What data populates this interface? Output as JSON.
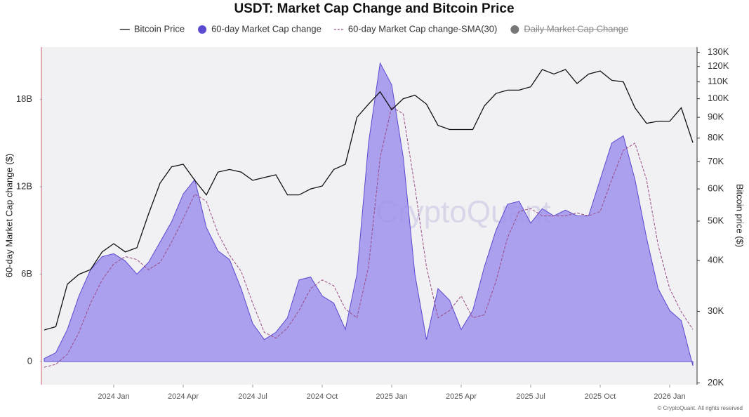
{
  "chart_data": {
    "type": "line",
    "title": "USDT: Market Cap Change and Bitcoin Price",
    "watermark": "CryptoQuant",
    "footer": "© CryptoQuant. All rights reserved",
    "ylabel": "60-day Market Cap change ($)",
    "y2label": "Bitcoin price ($)",
    "y2scale": "log",
    "grid": false,
    "legend": "top",
    "categories": [
      null,
      null,
      null,
      null,
      null,
      null,
      "2024 Jan",
      null,
      null,
      null,
      null,
      null,
      "2024 Apr",
      null,
      null,
      null,
      null,
      null,
      "2024 Jul",
      null,
      null,
      null,
      null,
      null,
      "2024 Oct",
      null,
      null,
      null,
      null,
      null,
      "2025 Jan",
      null,
      null,
      null,
      null,
      null,
      "2025 Apr",
      null,
      null,
      null,
      null,
      null,
      "2025 Jul",
      null,
      null,
      null,
      null,
      null,
      "2025 Oct",
      null,
      null,
      null,
      null,
      null,
      "2026 Jan",
      null,
      null
    ],
    "ylim": [
      -1600000000.0,
      21600000000.0
    ],
    "yticks": [
      {
        "value": 0,
        "label": "0"
      },
      {
        "value": 6000000000.0,
        "label": "6B"
      },
      {
        "value": 12000000000.0,
        "label": "12B"
      },
      {
        "value": 18000000000.0,
        "label": "18B"
      }
    ],
    "y2lim": [
      19800,
      134000
    ],
    "y2ticks": [
      {
        "value": 20000,
        "label": "20K"
      },
      {
        "value": 30000,
        "label": "30K"
      },
      {
        "value": 40000,
        "label": "40K"
      },
      {
        "value": 50000,
        "label": "50K"
      },
      {
        "value": 60000,
        "label": "60K"
      },
      {
        "value": 70000,
        "label": "70K"
      },
      {
        "value": 80000,
        "label": "80K"
      },
      {
        "value": 90000,
        "label": "90K"
      },
      {
        "value": 100000,
        "label": "100K"
      },
      {
        "value": 110000,
        "label": "110K"
      },
      {
        "value": 120000,
        "label": "120K"
      },
      {
        "value": 130000,
        "label": "130K"
      }
    ],
    "series": [
      {
        "name": "Bitcoin Price",
        "color": "#111111",
        "axis": "y2",
        "mark": "line",
        "values": [
          27000,
          27500,
          35000,
          37000,
          38000,
          42000,
          44000,
          42000,
          43000,
          52000,
          62000,
          68000,
          69000,
          63000,
          58000,
          66000,
          67000,
          66000,
          63000,
          64000,
          65000,
          58000,
          58000,
          60000,
          61000,
          67000,
          69000,
          90000,
          97000,
          104000,
          94000,
          100000,
          102000,
          97000,
          86000,
          84000,
          84000,
          84000,
          96000,
          103000,
          105000,
          105000,
          107000,
          118000,
          115000,
          118000,
          109000,
          115000,
          117000,
          111000,
          110000,
          95000,
          87000,
          88000,
          88000,
          95000,
          78000
        ]
      },
      {
        "name": "60-day Market Cap change",
        "color": "#5a4bd1",
        "fill": "#9d92ec",
        "mark": "area",
        "values": [
          200000000.0,
          600000000.0,
          2200000000.0,
          4500000000.0,
          6300000000.0,
          7200000000.0,
          7400000000.0,
          6900000000.0,
          6000000000.0,
          6800000000.0,
          8200000000.0,
          9600000000.0,
          11500000000.0,
          12500000000.0,
          9200000000.0,
          7600000000.0,
          7000000000.0,
          5000000000.0,
          2600000000.0,
          1500000000.0,
          2000000000.0,
          3000000000.0,
          5600000000.0,
          5800000000.0,
          4500000000.0,
          4000000000.0,
          2200000000.0,
          6000000000.0,
          15000000000.0,
          20500000000.0,
          19000000000.0,
          14000000000.0,
          6000000000.0,
          1500000000.0,
          5000000000.0,
          4200000000.0,
          2200000000.0,
          3500000000.0,
          6500000000.0,
          9000000000.0,
          10800000000.0,
          11000000000.0,
          9500000000.0,
          10500000000.0,
          10000000000.0,
          10400000000.0,
          10000000000.0,
          10000000000.0,
          12500000000.0,
          15000000000.0,
          15500000000.0,
          12500000000.0,
          8500000000.0,
          5000000000.0,
          3500000000.0,
          2800000000.0,
          -300000000.0
        ]
      },
      {
        "name": "60-day Market Cap change-SMA(30)",
        "color": "#9b4d86",
        "mark": "line",
        "dash": true,
        "values": [
          -400000000.0,
          -200000000.0,
          500000000.0,
          2000000000.0,
          4000000000.0,
          5600000000.0,
          6700000000.0,
          7200000000.0,
          7000000000.0,
          6300000000.0,
          6800000000.0,
          8200000000.0,
          9800000000.0,
          11500000000.0,
          11000000000.0,
          8800000000.0,
          7300000000.0,
          6200000000.0,
          4000000000.0,
          2000000000.0,
          1600000000.0,
          2300000000.0,
          3500000000.0,
          5000000000.0,
          5600000000.0,
          5200000000.0,
          3600000000.0,
          3000000000.0,
          6500000000.0,
          14000000000.0,
          17500000000.0,
          17000000000.0,
          12000000000.0,
          6500000000.0,
          3000000000.0,
          3500000000.0,
          4500000000.0,
          3000000000.0,
          3200000000.0,
          5500000000.0,
          8500000000.0,
          10300000000.0,
          10500000000.0,
          10000000000.0,
          10000000000.0,
          10000000000.0,
          10200000000.0,
          10000000000.0,
          10300000000.0,
          12500000000.0,
          14500000000.0,
          15000000000.0,
          12500000000.0,
          8000000000.0,
          5000000000.0,
          3400000000.0,
          2200000000.0
        ]
      },
      {
        "name": "Daily Market Cap Change",
        "color": "#777777",
        "mark": "dot",
        "hidden": true
      }
    ]
  }
}
